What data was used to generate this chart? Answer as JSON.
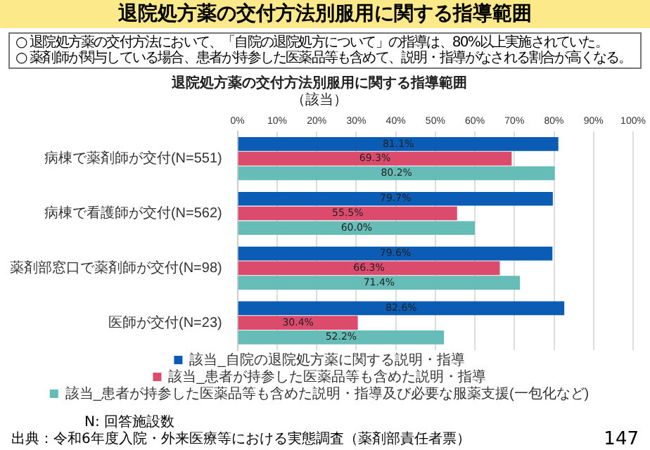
{
  "chart_data": {
    "type": "bar",
    "orientation": "horizontal",
    "title": "退院処方薬の交付方法別服用に関する指導範囲",
    "subtitle": "（該当）",
    "categories": [
      "病棟で薬剤師が交付(N=551)",
      "病棟で看護師が交付(N=562)",
      "薬剤部窓口で薬剤師が交付(N=98)",
      "医師が交付(N=23)"
    ],
    "series": [
      {
        "name": "該当_自院の退院処方薬に関する説明・指導",
        "color": "#0a5cb4",
        "values": [
          81.1,
          79.7,
          79.6,
          82.6
        ],
        "value_labels": [
          "81.1%",
          "79.7%",
          "79.6%",
          "82.6%"
        ]
      },
      {
        "name": "該当_患者が持参した医薬品等も含めた説明・指導",
        "color": "#dc4b6c",
        "values": [
          69.3,
          55.5,
          66.3,
          30.4
        ],
        "value_labels": [
          "69.3%",
          "55.5%",
          "66.3%",
          "30.4%"
        ]
      },
      {
        "name": "該当_患者が持参した医薬品等も含めた説明・指導及び必要な服薬支援(一包化など)",
        "color": "#66bdb8",
        "values": [
          80.2,
          60.0,
          71.4,
          52.2
        ],
        "value_labels": [
          "80.2%",
          "60.0%",
          "71.4%",
          "52.2%"
        ]
      }
    ],
    "xlim": [
      0,
      100
    ],
    "xticks": [
      {
        "value": 0,
        "label": "0%"
      },
      {
        "value": 10,
        "label": "10%"
      },
      {
        "value": 20,
        "label": "20%"
      },
      {
        "value": 30,
        "label": "30%"
      },
      {
        "value": 40,
        "label": "40%"
      },
      {
        "value": 50,
        "label": "50%"
      },
      {
        "value": 60,
        "label": "60%"
      },
      {
        "value": 70,
        "label": "70%"
      },
      {
        "value": 80,
        "label": "80%"
      },
      {
        "value": 90,
        "label": "90%"
      },
      {
        "value": 100,
        "label": "100%"
      }
    ],
    "grid": "x",
    "legend": "bottom",
    "annotations": [
      "退院処方薬の交付方法別服用に関する指導範囲",
      "○ 退院処方薬の交付方法において、「自院の退院処方について」の指導は、80%以上実施されていた。",
      "○ 薬剤師が関与している場合、患者が持参した医薬品等も含めて、説明・指導がなされる割合が高くなる。",
      "N: 回答施設数",
      "出典：令和6年度入院・外来医療等における実態調査（薬剤部責任者票）",
      "147"
    ]
  }
}
